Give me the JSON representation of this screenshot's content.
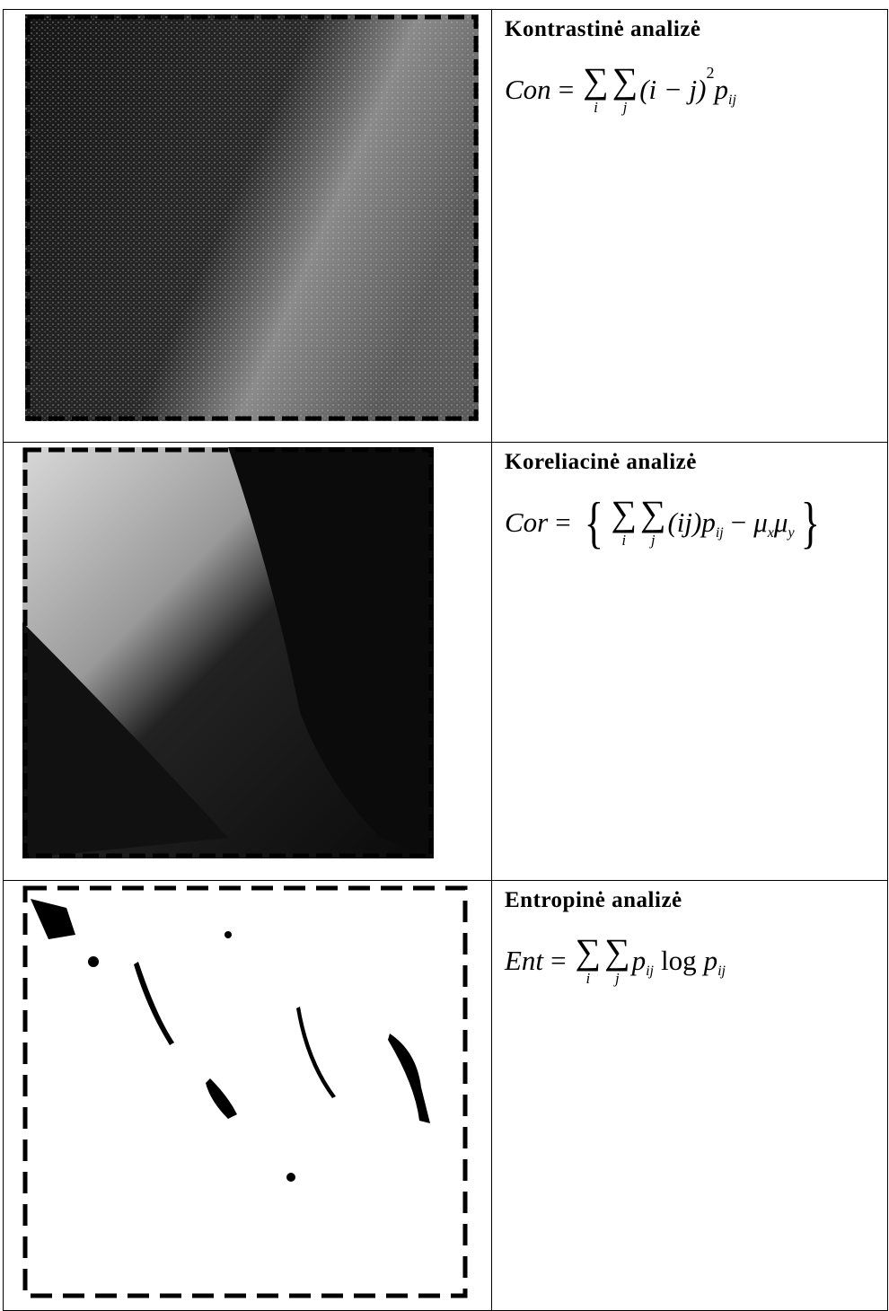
{
  "table": {
    "rows": [
      {
        "title": "Kontrastinė analizė",
        "formula": [
          {
            "text": "Con"
          },
          {
            "text": "=",
            "upright": true
          },
          {
            "sum": "∑",
            "under": "i"
          },
          {
            "sum": "∑",
            "under": "j"
          },
          {
            "text": "(i − j)"
          },
          {
            "sup": "2"
          },
          {
            "text": "p"
          },
          {
            "sub": "ij"
          }
        ]
      },
      {
        "title": "Koreliacinė analizė",
        "formula": [
          {
            "text": "Cor"
          },
          {
            "text": "=",
            "upright": true
          },
          {
            "big": "{"
          },
          {
            "sum": "∑",
            "under": "i"
          },
          {
            "sum": "∑",
            "under": "j"
          },
          {
            "text": "(ij)"
          },
          {
            "text": "p"
          },
          {
            "sub": "ij"
          },
          {
            "text": "−",
            "upright": true
          },
          {
            "text": "μ"
          },
          {
            "sub": "x"
          },
          {
            "text": "μ"
          },
          {
            "sub": "y"
          },
          {
            "big": "}"
          }
        ]
      },
      {
        "title": "Entropinė analizė",
        "formula": [
          {
            "text": "Ent"
          },
          {
            "text": "=",
            "upright": true
          },
          {
            "sum": "∑",
            "under": "i"
          },
          {
            "sum": "∑",
            "under": "j"
          },
          {
            "text": "p"
          },
          {
            "sub": "ij"
          },
          {
            "text": "log",
            "upright": true
          },
          {
            "text": "p"
          },
          {
            "sub": "ij"
          }
        ]
      }
    ]
  }
}
